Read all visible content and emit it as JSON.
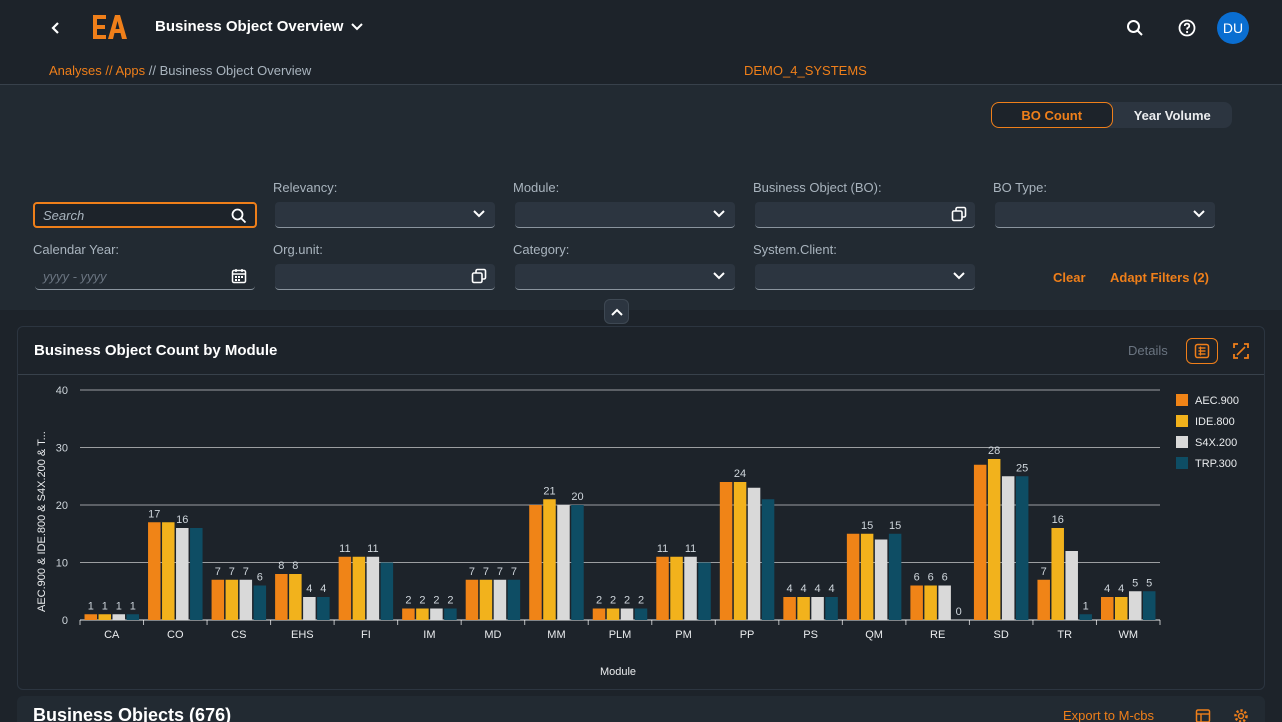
{
  "shell": {
    "title": "Business Object Overview",
    "avatar_initials": "DU"
  },
  "breadcrumb": {
    "analyses": "Analyses",
    "sep1": " // ",
    "apps": "Apps",
    "sep2": " // ",
    "current": "Business Object Overview"
  },
  "system": "DEMO_4_SYSTEMS",
  "view_toggle": {
    "bo_count": "BO Count",
    "year_volume": "Year Volume"
  },
  "filters": {
    "search_placeholder": "Search",
    "relevancy_label": "Relevancy:",
    "module_label": "Module:",
    "business_object_label": "Business Object (BO):",
    "bo_type_label": "BO Type:",
    "calendar_year_label": "Calendar Year:",
    "calendar_year_placeholder": "yyyy - yyyy",
    "org_unit_label": "Org.unit:",
    "category_label": "Category:",
    "system_client_label": "System.Client:",
    "clear": "Clear",
    "adapt_filters": "Adapt Filters (2)"
  },
  "chart_card": {
    "title": "Business Object Count by Module",
    "details": "Details"
  },
  "bo_card": {
    "title": "Business Objects (676)",
    "export": "Export to M-cbs"
  },
  "colors": {
    "accent": "#ef7f1a",
    "series_aec": "#f08417",
    "series_ide": "#f2b21c",
    "series_s4x": "#d9d9d9",
    "series_trp": "#0e4d64"
  },
  "chart_data": {
    "type": "bar",
    "ylabel": "AEC.900 & IDE.800 & S4X.200 & T...",
    "xlabel": "Module",
    "ylim": [
      0,
      40
    ],
    "yticks": [
      0,
      10,
      20,
      30,
      40
    ],
    "legend_position": "right",
    "categories": [
      "CA",
      "CO",
      "CS",
      "EHS",
      "FI",
      "IM",
      "MD",
      "MM",
      "PLM",
      "PM",
      "PP",
      "PS",
      "QM",
      "RE",
      "SD",
      "TR",
      "WM"
    ],
    "series": [
      {
        "name": "AEC.900",
        "values": [
          1,
          17,
          7,
          8,
          11,
          2,
          7,
          20,
          2,
          11,
          24,
          4,
          15,
          6,
          27,
          7,
          4
        ]
      },
      {
        "name": "IDE.800",
        "values": [
          1,
          17,
          7,
          8,
          11,
          2,
          7,
          21,
          2,
          11,
          24,
          4,
          15,
          6,
          28,
          16,
          4
        ]
      },
      {
        "name": "S4X.200",
        "values": [
          1,
          16,
          7,
          4,
          11,
          2,
          7,
          20,
          2,
          11,
          23,
          4,
          14,
          6,
          25,
          12,
          5
        ]
      },
      {
        "name": "TRP.300",
        "values": [
          1,
          16,
          6,
          4,
          10,
          2,
          7,
          20,
          2,
          10,
          21,
          4,
          15,
          0,
          25,
          1,
          5
        ]
      }
    ],
    "group_labels": [
      [
        1,
        1,
        1,
        1
      ],
      [
        17,
        null,
        16,
        null
      ],
      [
        7,
        7,
        7,
        6
      ],
      [
        8,
        8,
        4,
        4
      ],
      [
        11,
        null,
        11,
        null
      ],
      [
        2,
        2,
        2,
        2
      ],
      [
        7,
        7,
        7,
        7
      ],
      [
        null,
        21,
        null,
        20
      ],
      [
        2,
        2,
        2,
        2
      ],
      [
        11,
        null,
        11,
        null
      ],
      [
        null,
        24,
        null,
        null
      ],
      [
        4,
        4,
        4,
        4
      ],
      [
        null,
        15,
        null,
        15
      ],
      [
        6,
        6,
        6,
        0
      ],
      [
        null,
        28,
        null,
        25
      ],
      [
        7,
        16,
        null,
        1
      ],
      [
        4,
        4,
        5,
        5
      ]
    ]
  }
}
